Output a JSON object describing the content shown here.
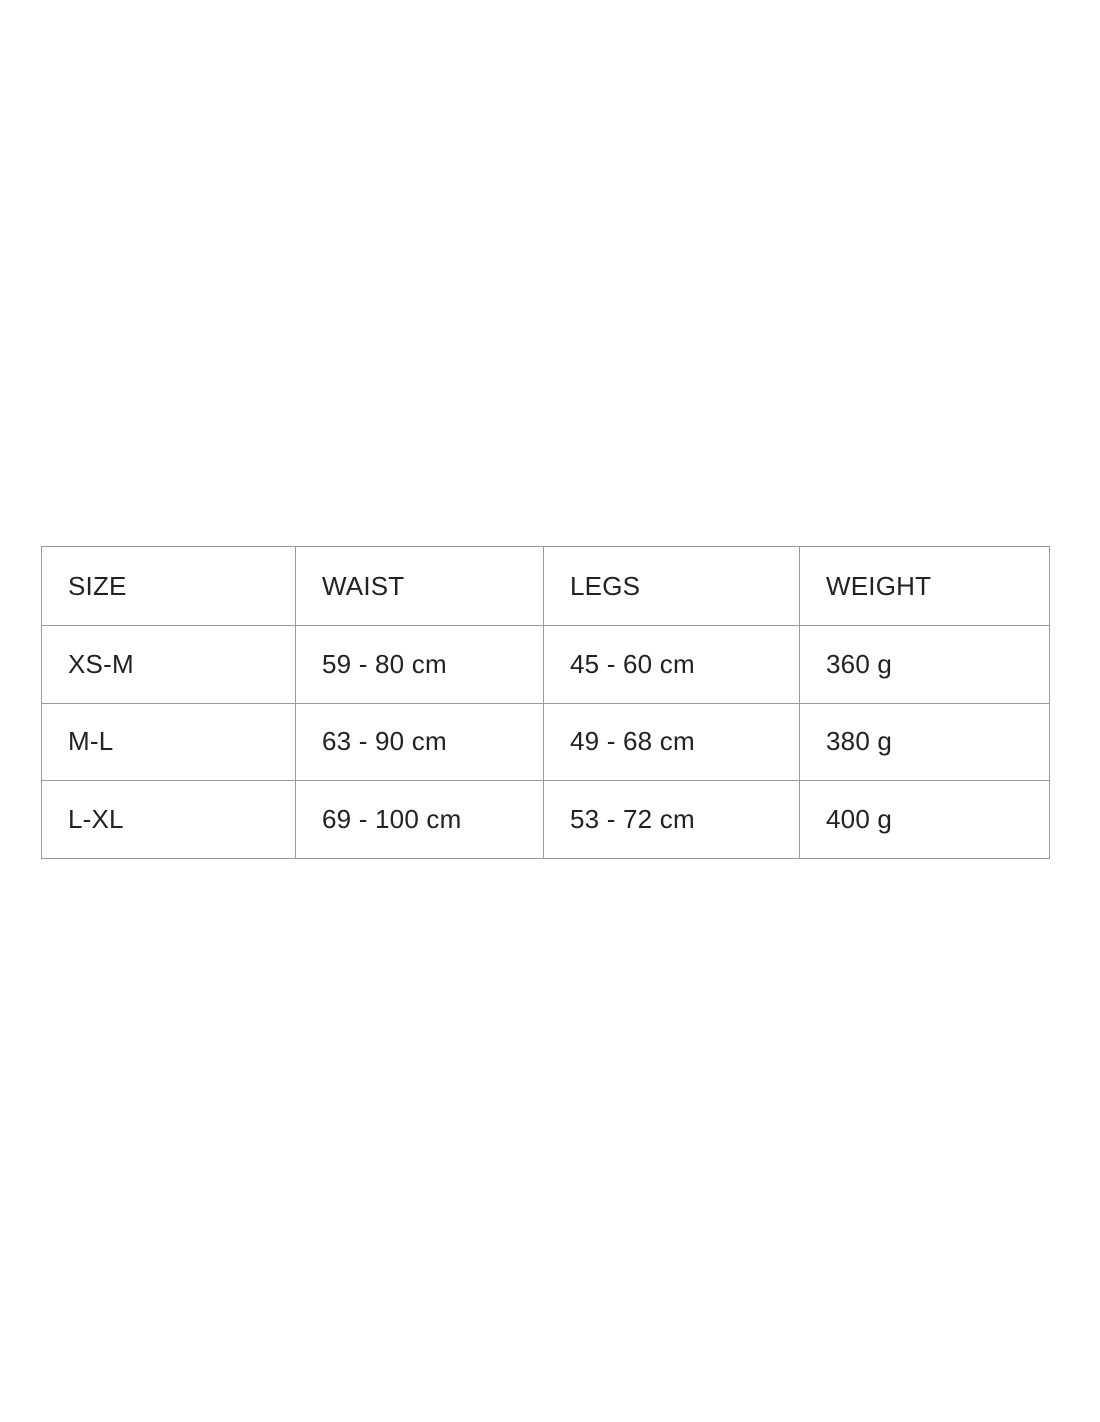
{
  "page": {
    "background_color": "#ffffff",
    "border_color": "#9a9a9a",
    "text_color": "#222222"
  },
  "size_chart": {
    "columns": [
      "SIZE",
      "WAIST",
      "LEGS",
      "WEIGHT"
    ],
    "rows": [
      [
        "XS-M",
        "59 - 80 cm",
        "45 - 60 cm",
        "360 g"
      ],
      [
        "M-L",
        "63 - 90 cm",
        "49 - 68 cm",
        "380 g"
      ],
      [
        "L-XL",
        "69 - 100 cm",
        "53 - 72 cm",
        "400 g"
      ]
    ]
  }
}
